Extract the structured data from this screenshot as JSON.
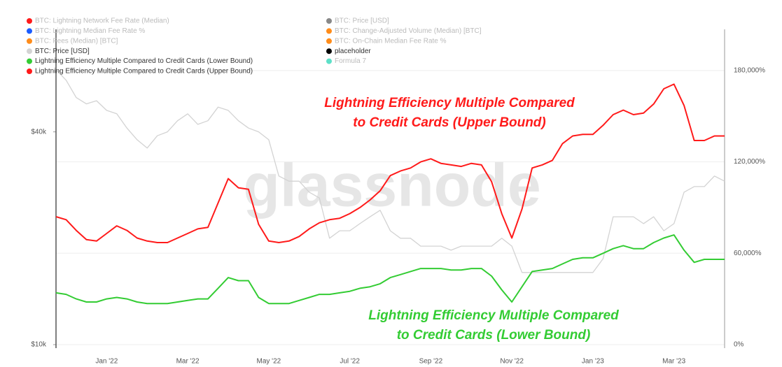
{
  "chart_data": {
    "type": "line",
    "watermark": "glassnode",
    "categories": [
      null,
      null,
      null,
      null,
      null,
      "Jan '22",
      null,
      null,
      null,
      null,
      null,
      null,
      null,
      "Mar '22",
      null,
      null,
      null,
      null,
      null,
      null,
      null,
      "May '22",
      null,
      null,
      null,
      null,
      null,
      null,
      null,
      "Jul '22",
      null,
      null,
      null,
      null,
      null,
      null,
      null,
      "Sep '22",
      null,
      null,
      null,
      null,
      null,
      null,
      null,
      "Nov '22",
      null,
      null,
      null,
      null,
      null,
      null,
      null,
      "Jan '23",
      null,
      null,
      null,
      null,
      null,
      null,
      null,
      "Mar '23",
      null,
      null,
      null,
      null,
      null
    ],
    "ylim": [
      10000,
      78000
    ],
    "ylog": true,
    "yticks": [
      {
        "value": 10000,
        "label": "$10k"
      },
      {
        "value": 40000,
        "label": "$40k"
      }
    ],
    "y2lim": [
      0,
      207000
    ],
    "y2ticks": [
      {
        "value": 0,
        "label": "0%"
      },
      {
        "value": 60000,
        "label": "60,000%"
      },
      {
        "value": 120000,
        "label": "120,000%"
      },
      {
        "value": 180000,
        "label": "180,000%"
      }
    ],
    "grid": true,
    "series": [
      {
        "name": "BTC: Price [USD]",
        "color": "#d3d3d3",
        "axis": "y",
        "values": [
          60000,
          56000,
          50000,
          48000,
          49000,
          46000,
          45000,
          41000,
          38000,
          36000,
          39000,
          40000,
          43000,
          45000,
          42000,
          43000,
          47000,
          46000,
          43000,
          41000,
          40000,
          38000,
          30000,
          29000,
          29000,
          27000,
          26000,
          20000,
          21000,
          21000,
          22000,
          23000,
          24000,
          21000,
          20000,
          20000,
          19000,
          19000,
          19000,
          18500,
          19000,
          19000,
          19000,
          19000,
          20000,
          19000,
          16000,
          16000,
          16000,
          16000,
          16000,
          16000,
          16000,
          16000,
          17500,
          23000,
          23000,
          23000,
          22000,
          23000,
          21000,
          22000,
          27000,
          28000,
          28000,
          30000,
          29000
        ]
      },
      {
        "name": "Lightning Efficiency Multiple Compared to Credit Cards (Lower Bound)",
        "color": "#33cc33",
        "axis": "y2",
        "values": [
          34000,
          33000,
          30000,
          28000,
          28000,
          30000,
          31000,
          30000,
          28000,
          27000,
          27000,
          27000,
          28000,
          29000,
          30000,
          30000,
          37000,
          44000,
          42000,
          42000,
          31000,
          27000,
          27000,
          27000,
          29000,
          31000,
          33000,
          33000,
          34000,
          35000,
          37000,
          38000,
          40000,
          44000,
          46000,
          48000,
          50000,
          50000,
          50000,
          49000,
          49000,
          50000,
          50000,
          45000,
          36000,
          28000,
          38000,
          48000,
          49000,
          50000,
          53000,
          56000,
          57000,
          57000,
          60000,
          63000,
          65000,
          63000,
          63000,
          67000,
          70000,
          72000,
          62000,
          54000,
          56000,
          56000,
          56000
        ]
      },
      {
        "name": "Lightning Efficiency Multiple Compared to Credit Cards (Upper Bound)",
        "color": "#ff1a1a",
        "axis": "y2",
        "values": [
          84000,
          82000,
          75000,
          69000,
          68000,
          73000,
          78000,
          75000,
          70000,
          68000,
          67000,
          67000,
          70000,
          73000,
          76000,
          77000,
          93000,
          109000,
          103000,
          102000,
          79000,
          68000,
          67000,
          68000,
          71000,
          76000,
          80000,
          82000,
          83000,
          86000,
          90000,
          95000,
          101000,
          111000,
          114000,
          116000,
          120000,
          122000,
          119000,
          118000,
          117000,
          119000,
          118000,
          107000,
          86000,
          70000,
          89000,
          116000,
          118000,
          121000,
          132000,
          137000,
          138000,
          138000,
          144000,
          151000,
          154000,
          151000,
          152000,
          158000,
          168000,
          171000,
          157000,
          134000,
          134000,
          137000,
          137000
        ]
      }
    ],
    "legend_extra": [
      {
        "name": "BTC: Lightning Network Fee Rate (Median)",
        "color": "#ff1a1a"
      },
      {
        "name": "BTC: Lightning Median Fee Rate %",
        "color": "#1a5cff"
      },
      {
        "name": "BTC: Fees (Median) [BTC]",
        "color": "#ff8c1a"
      },
      {
        "name": "BTC: Price [USD]",
        "color": "#888888"
      },
      {
        "name": "BTC: Change-Adjusted Volume (Median) [BTC]",
        "color": "#ff8c1a"
      },
      {
        "name": "BTC: On-Chain Median Fee Rate %",
        "color": "#ff8c1a"
      },
      {
        "name": "placeholder",
        "color": "#000000"
      },
      {
        "name": "Formula 7",
        "color": "#5ee0c8"
      }
    ],
    "annotations": [
      {
        "lines": [
          "Lightning Efficiency Multiple Compared",
          "to Credit Cards (Upper Bound)"
        ],
        "color": "#ff1a1a"
      },
      {
        "lines": [
          "Lightning Efficiency Multiple Compared",
          "to Credit Cards (Lower Bound)"
        ],
        "color": "#33cc33"
      }
    ]
  }
}
